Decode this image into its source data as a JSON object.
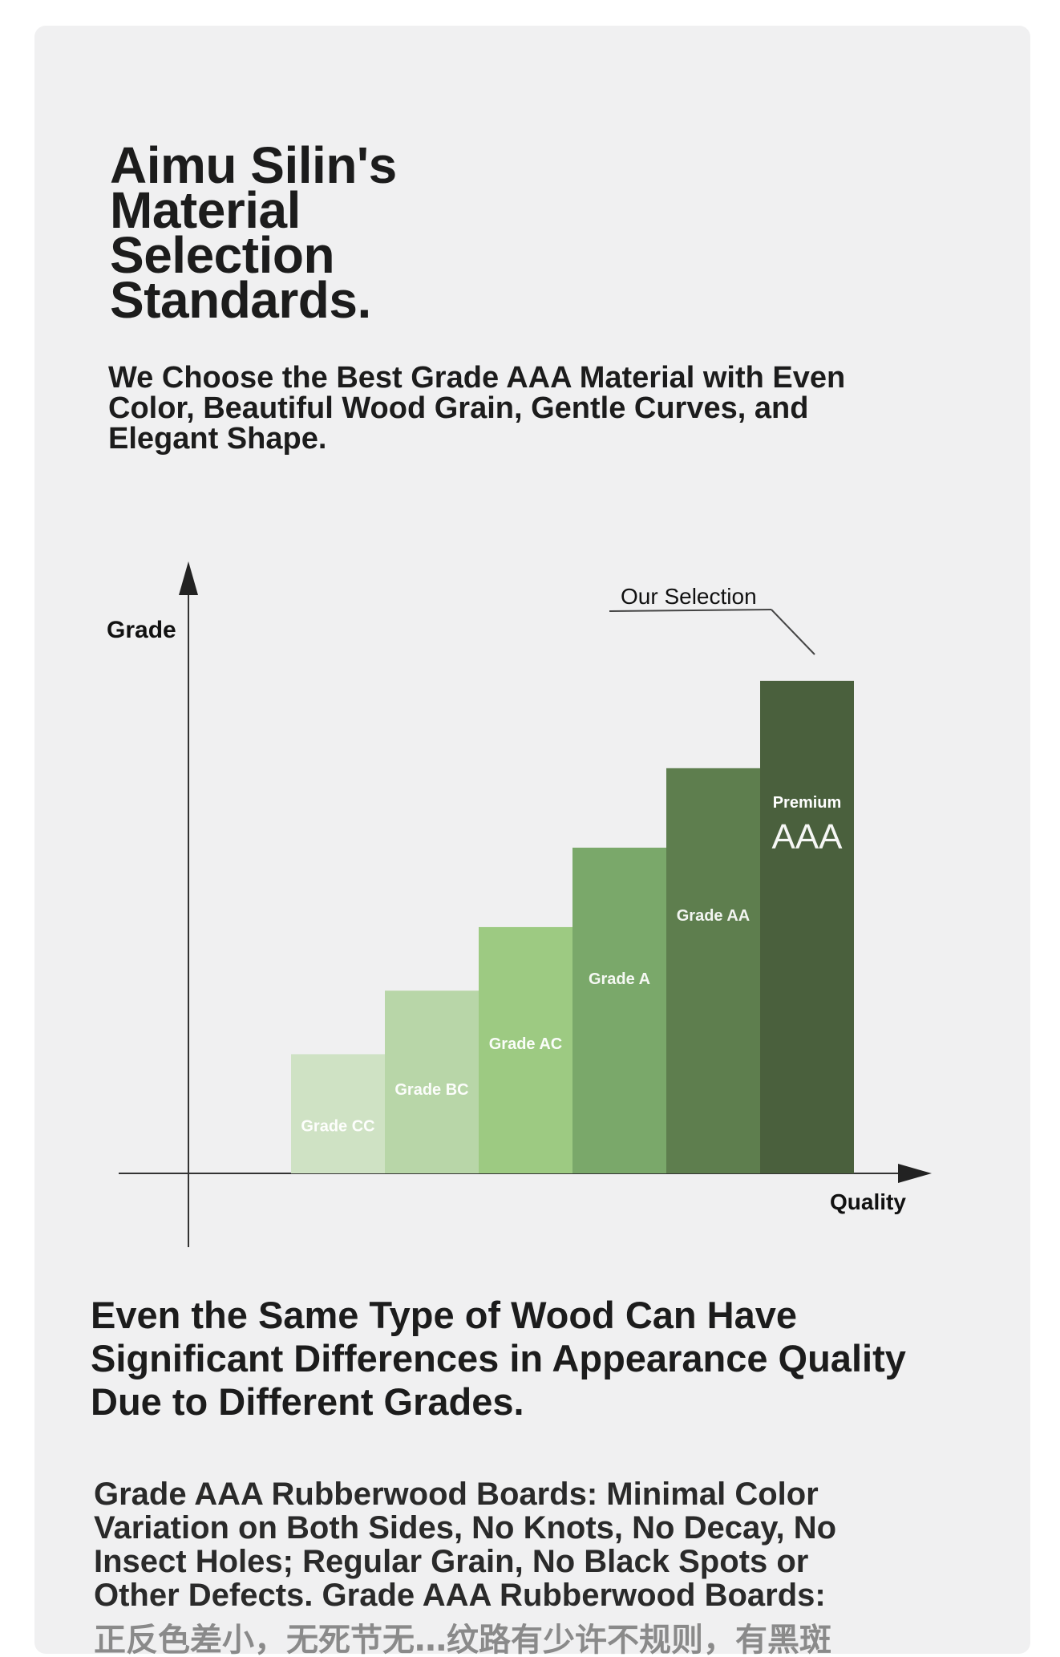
{
  "heading": {
    "title_lines": [
      "Aimu Silin's",
      "Material",
      "Selection",
      "Standards."
    ],
    "subtitle": "We Choose the Best Grade AAA Material with Even Color, Beautiful Wood Grain, Gentle Curves, and Elegant Shape."
  },
  "chart_data": {
    "type": "bar",
    "ylabel": "Grade",
    "xlabel": "Quality",
    "annotation": "Our Selection",
    "categories": [
      "Grade CC",
      "Grade BC",
      "Grade AC",
      "Grade A",
      "Grade AA",
      "AAA"
    ],
    "values": [
      1.5,
      2.3,
      3.1,
      4.1,
      5.1,
      6.2
    ],
    "ylim": [
      0,
      7.4
    ],
    "top_bar_caption": "Premium",
    "bar_colors": [
      "#cfe2c4",
      "#b8d6a8",
      "#9dca82",
      "#7aa86a",
      "#5e7e4e",
      "#4a603d"
    ],
    "grid": false
  },
  "section2": {
    "heading": "Even the Same Type of Wood Can Have Significant Differences in Appearance Quality Due to Different Grades.",
    "paragraph": "Grade AAA Rubberwood Boards: Minimal Color Variation on Both Sides, No Knots, No Decay, No Insect Holes; Regular Grain, No Black Spots or Other Defects. Grade AAA Rubberwood Boards:",
    "paragraph_cut": "正反色差小，无死节无…纹路有少许不规则，有黑斑"
  }
}
